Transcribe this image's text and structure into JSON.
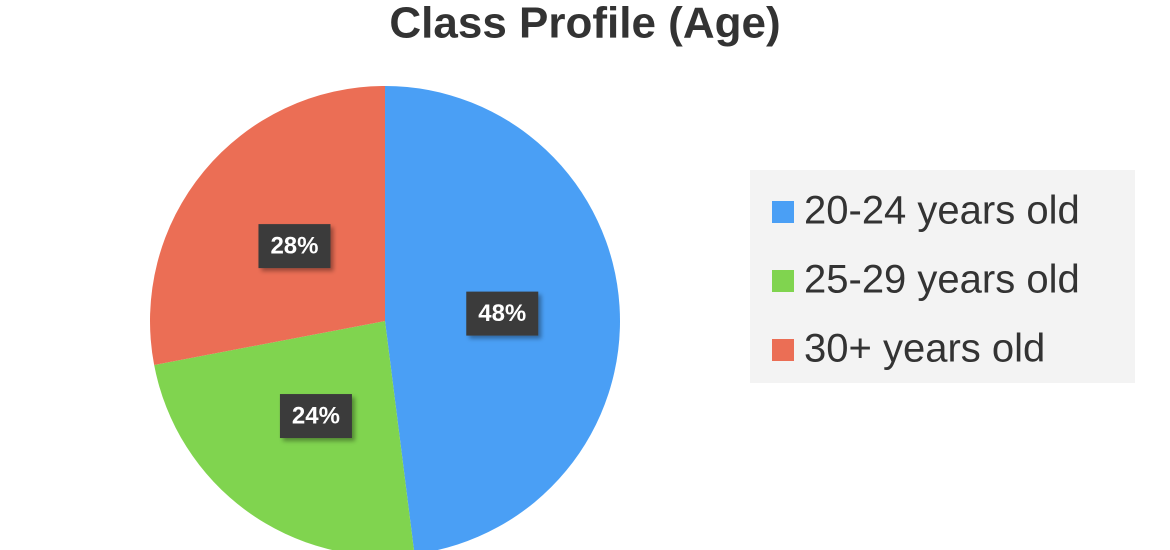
{
  "chart_data": {
    "type": "pie",
    "title": "Class Profile (Age)",
    "categories": [
      "20-24 years old",
      "25-29 years old",
      "30+ years old"
    ],
    "values": [
      48,
      24,
      28
    ],
    "value_labels": [
      "48%",
      "24%",
      "28%"
    ],
    "colors": [
      "#4a9ff5",
      "#80d44f",
      "#eb6e55"
    ],
    "legend": "right"
  }
}
